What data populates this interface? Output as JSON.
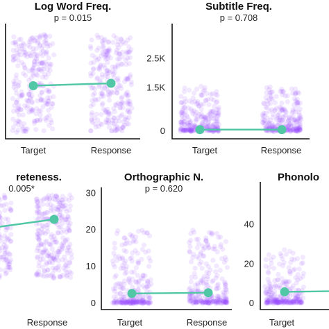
{
  "colors": {
    "points": "#9b4dff",
    "line": "#52c7a6",
    "mean": "#52c7a6",
    "axis": "#111111"
  },
  "chart_data": [
    {
      "type": "scatter",
      "title": "Log Word Freq.",
      "subtitle": "p = 0.015",
      "categories": [
        "Target",
        "Response"
      ],
      "y_ticks": [],
      "means": [
        1.9,
        2.0
      ],
      "spread": [
        0.0,
        4.0
      ],
      "ylim": [
        0,
        4
      ],
      "grid": false
    },
    {
      "type": "scatter",
      "title": "Subtitle Freq.",
      "subtitle": "p = 0.708",
      "categories": [
        "Target",
        "Response"
      ],
      "y_ticks": [
        "0",
        "1.5K",
        "2.5K"
      ],
      "y_tick_values": [
        0,
        1500,
        2500
      ],
      "means": [
        30,
        30
      ],
      "spread": [
        0,
        1500
      ],
      "ylim": [
        0,
        3500
      ],
      "grid": false
    },
    {
      "type": "scatter",
      "title": "reteness.",
      "subtitle": "0.005*",
      "categories": [
        "",
        "Response"
      ],
      "y_ticks": [],
      "means": [
        3.8,
        4.1
      ],
      "spread": [
        2.0,
        5.0
      ],
      "ylim": [
        1,
        5
      ],
      "grid": false
    },
    {
      "type": "scatter",
      "title": "Orthographic N.",
      "subtitle": "p = 0.620",
      "categories": [
        "Target",
        "Response"
      ],
      "y_ticks": [
        "0",
        "10",
        "20",
        "30"
      ],
      "y_tick_values": [
        0,
        10,
        20,
        30
      ],
      "means": [
        2.5,
        2.7
      ],
      "spread": [
        0,
        20
      ],
      "ylim": [
        0,
        31
      ],
      "grid": false
    },
    {
      "type": "scatter",
      "title": "Phonolo",
      "subtitle": "",
      "categories": [
        "Target",
        ""
      ],
      "y_ticks": [
        "0",
        "20",
        "40"
      ],
      "y_tick_values": [
        0,
        20,
        40
      ],
      "means": [
        5.5,
        6.0
      ],
      "spread": [
        0,
        27
      ],
      "ylim": [
        0,
        48
      ],
      "grid": false
    }
  ]
}
